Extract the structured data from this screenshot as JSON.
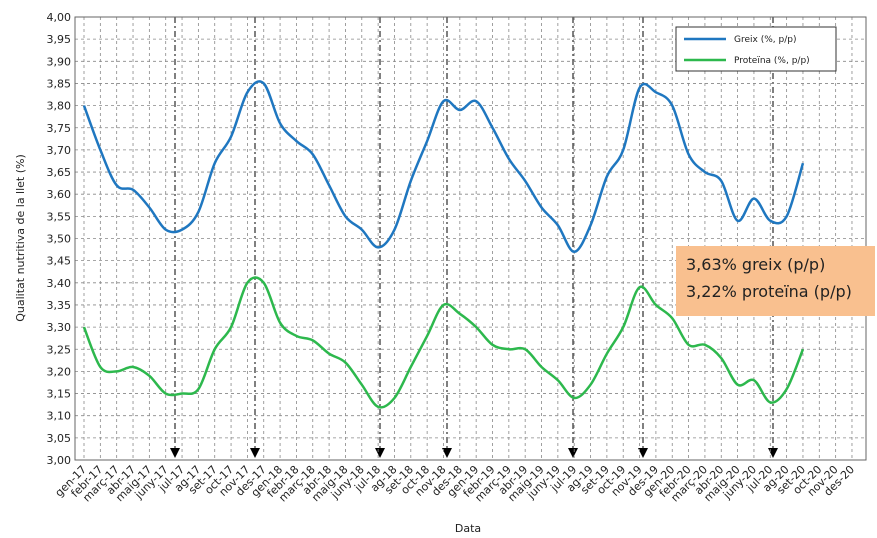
{
  "chart_data": {
    "type": "line",
    "ylabel": "Qualitat nutritiva de la llet (%)",
    "xlabel": "Data",
    "categories": [
      "gen-17",
      "febr-17",
      "març-17",
      "abr-17",
      "maig-17",
      "juny-17",
      "jul-17",
      "ag-17",
      "set-17",
      "oct-17",
      "nov-17",
      "des-17",
      "gen-18",
      "febr-18",
      "març-18",
      "abr-18",
      "maig-18",
      "juny-18",
      "jul-18",
      "ag-18",
      "set-18",
      "oct-18",
      "nov-18",
      "des-18",
      "gen-19",
      "febr-19",
      "març-19",
      "abr-19",
      "maig-19",
      "juny-19",
      "jul-19",
      "ag-19",
      "set-19",
      "oct-19",
      "nov-19",
      "des-19",
      "gen-20",
      "febr-20",
      "març-20",
      "abr-20",
      "maig-20",
      "juny-20",
      "jul-20",
      "ag-20",
      "set-20",
      "oct-20",
      "nov-20",
      "des-20"
    ],
    "series": [
      {
        "name": "Greix (%, p/p)",
        "color": "#1f77c0",
        "values": [
          3.8,
          3.7,
          3.62,
          3.61,
          3.57,
          3.52,
          3.52,
          3.56,
          3.67,
          3.73,
          3.83,
          3.85,
          3.76,
          3.72,
          3.69,
          3.62,
          3.55,
          3.52,
          3.48,
          3.52,
          3.63,
          3.72,
          3.81,
          3.79,
          3.81,
          3.75,
          3.68,
          3.63,
          3.57,
          3.53,
          3.47,
          3.53,
          3.64,
          3.7,
          3.84,
          3.83,
          3.8,
          3.69,
          3.65,
          3.63,
          3.54,
          3.59,
          3.54,
          3.55,
          3.67,
          null,
          null,
          null
        ]
      },
      {
        "name": "Proteïna (%, p/p)",
        "color": "#2db84d",
        "values": [
          3.3,
          3.21,
          3.2,
          3.21,
          3.19,
          3.15,
          3.15,
          3.16,
          3.25,
          3.3,
          3.4,
          3.4,
          3.31,
          3.28,
          3.27,
          3.24,
          3.22,
          3.17,
          3.12,
          3.14,
          3.21,
          3.28,
          3.35,
          3.33,
          3.3,
          3.26,
          3.25,
          3.25,
          3.21,
          3.18,
          3.14,
          3.17,
          3.24,
          3.3,
          3.39,
          3.35,
          3.32,
          3.26,
          3.26,
          3.23,
          3.17,
          3.18,
          3.13,
          3.16,
          3.25,
          null,
          null,
          null
        ]
      }
    ],
    "ylim": [
      3.0,
      4.0
    ],
    "yticks": [
      {
        "value": 3.0,
        "label": "3,00"
      },
      {
        "value": 3.05,
        "label": "3,05"
      },
      {
        "value": 3.1,
        "label": "3,10"
      },
      {
        "value": 3.15,
        "label": "3,15"
      },
      {
        "value": 3.2,
        "label": "3,20"
      },
      {
        "value": 3.25,
        "label": "3,25"
      },
      {
        "value": 3.3,
        "label": "3,30"
      },
      {
        "value": 3.35,
        "label": "3,35"
      },
      {
        "value": 3.4,
        "label": "3,40"
      },
      {
        "value": 3.45,
        "label": "3,45"
      },
      {
        "value": 3.5,
        "label": "3,50"
      },
      {
        "value": 3.55,
        "label": "3,55"
      },
      {
        "value": 3.6,
        "label": "3,60"
      },
      {
        "value": 3.65,
        "label": "3,65"
      },
      {
        "value": 3.7,
        "label": "3,70"
      },
      {
        "value": 3.75,
        "label": "3,75"
      },
      {
        "value": 3.8,
        "label": "3,80"
      },
      {
        "value": 3.85,
        "label": "3,85"
      },
      {
        "value": 3.9,
        "label": "3,90"
      },
      {
        "value": 3.95,
        "label": "3,95"
      },
      {
        "value": 4.0,
        "label": "4,00"
      }
    ],
    "grid": true,
    "legend": "top-right",
    "annotations": [
      "3,63% greix (p/p)",
      "3,22% proteïna (p/p)"
    ]
  }
}
